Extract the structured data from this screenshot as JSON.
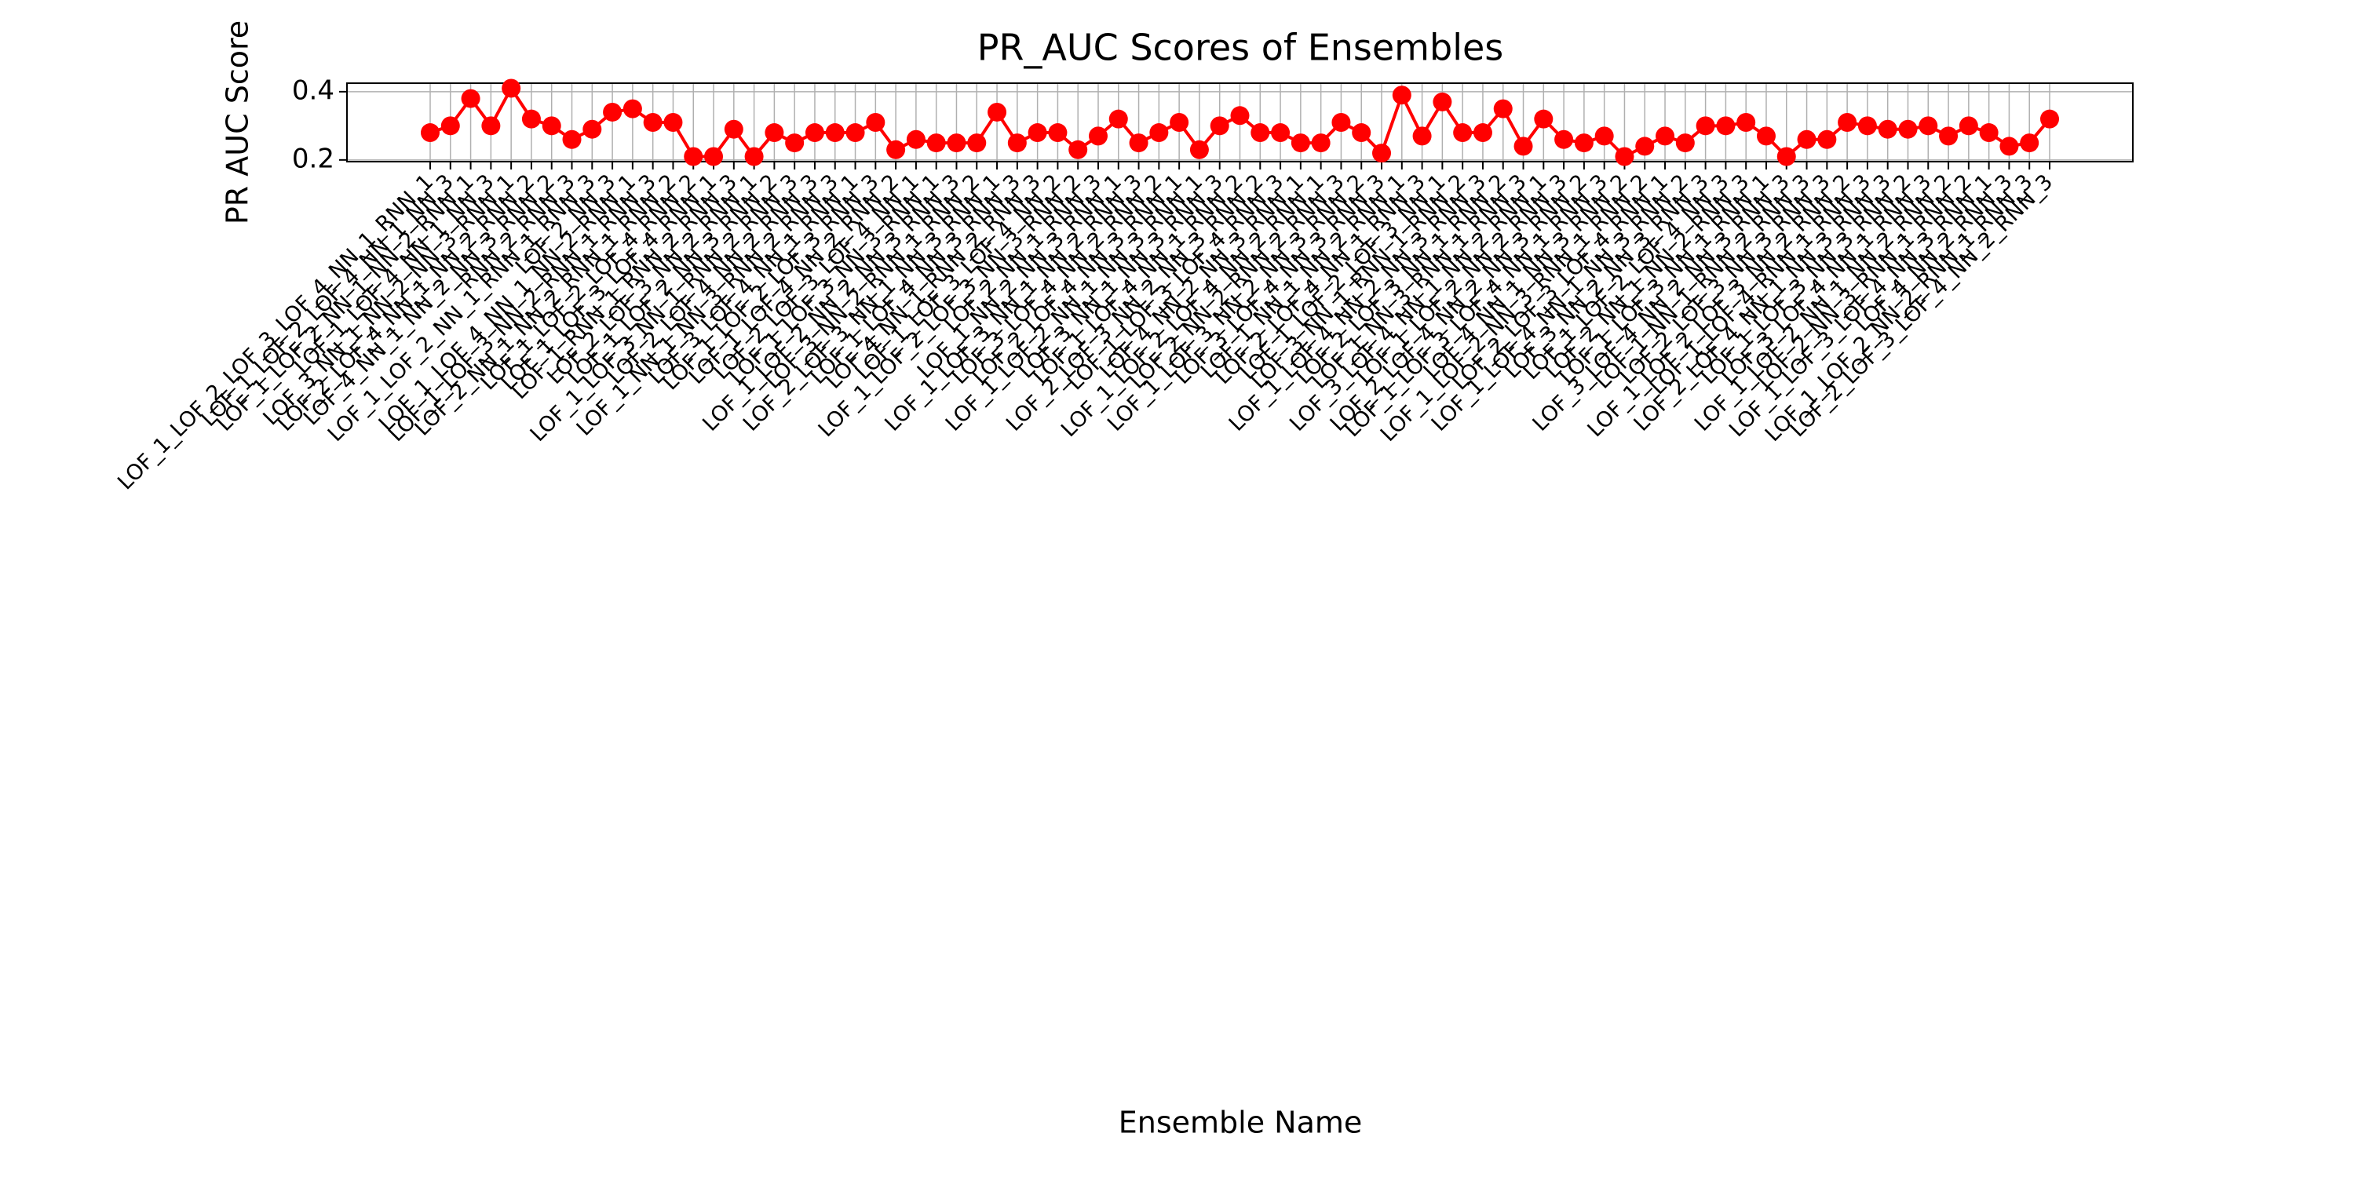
{
  "chart_data": {
    "type": "line",
    "title": "PR_AUC Scores of Ensembles",
    "x_label": "Ensemble Name",
    "y_label": "PR AUC Score",
    "categories": [
      "LOF_1_LOF_2_LOF_3_LOF_4_NN_1_RNN_1",
      "LOF_1_LOF_2_LOF_4_NN_1_NN_3",
      "LOF_1_LOF_2_NN_1_NN_2_RNN_1",
      "LOF_1_LOF_4_NN_1_NN_3",
      "LOF_3_NN_1_NN_2_NN_3_RNN_1",
      "LOF_2_LOF_4_NN_1_NN_2_RNN_2",
      "LOF_4_NN_1_NN_2_NN_3_RNN_2",
      "RNN_2_RNN_3",
      "LOF_1_LOF_2_NN_1_RNN_1_RNN_3",
      "LOF_2_NN_3",
      "LOF_1_LOF_4_NN_1_NN_2_RNN_1",
      "LOF_1_LOF_3_NN_2_RNN_1_RNN_3",
      "LOF_2_NN_1_NN_2_RNN_1_RNN_2",
      "LOF_1_LOF_2_LOF_4_RNN_2",
      "LOF_1_LOF_3_LOF_4_RNN_1",
      "LOF_1_RNN_1_RNN_2_RNN_3",
      "LOF_2_LOF_3_NN_2_RNN_1",
      "LOF_1_LOF_2_NN_3_RNN_2",
      "LOF_1_LOF_3_NN_1_RNN_2_RNN_3",
      "LOF_2_LOF_4_NN_2_RNN_3",
      "LOF_1_NN_1_NN_3_RNN_2_RNN_3",
      "LOF_3_LOF_4_NN_1_RNN_1",
      "LOF_1_LOF_2_LOF_3_RNN_3",
      "LOF_1_LOF_4_NN_2_RNN_2",
      "LOF_2_LOF_3_LOF_4_NN_1",
      "LOF_1_LOF_3_NN_3_RNN_1",
      "LOF_1_LOF_2_NN_2_NN_3_RNN_3",
      "LOF_3_NN_2_RNN_1_RNN_2",
      "LOF_2_LOF_3_NN_1_NN_3_RNN_1",
      "LOF_1_LOF_4_NN_3_RNN_3",
      "LOF_4_NN_1_RNN_2_RNN_3",
      "LOF_1_LOF_3_LOF_4_NN_2",
      "LOF_1_LOF_2_LOF_3_NN_3_RNN_2",
      "LOF_2_NN_1_RNN_3",
      "LOF_1_NN_2_NN_3_RNN_1",
      "LOF_1_LOF_3_NN_1_NN_2_RNN_3",
      "LOF_3_LOF_4_NN_2_RNN_2",
      "LOF_2_LOF_4_NN_3_RNN_1",
      "LOF_1_LOF_2_NN_1_NN_3_RNN_1",
      "LOF_3_NN_1_NN_3_RNN_3",
      "LOF_1_LOF_4_NN_1_RNN_2",
      "LOF_2_LOF_3_NN_2_NN_3_RNN_2",
      "LOF_1_LOF_3_LOF_4_RNN_3",
      "LOF_4_NN_2_NN_3_RNN_1",
      "LOF_1_LOF_2_LOF_4_NN_2_RNN_1",
      "LOF_2_NN_2_RNN_2_RNN_3",
      "LOF_1_LOF_3_NN_2_NN_3_RNN_2",
      "LOF_3_LOF_4_NN_3_RNN_3",
      "LOF_1_NN_1_NN_2_RNN_1",
      "LOF_2_LOF_4_NN_1_RNN_3",
      "LOF_1_LOF_2_LOF_3_NN_1",
      "LOF_3_NN_1_RNN_1_RNN_2",
      "LOF_1_LOF_4_NN_2_NN_3_RNN_3",
      "LOF_2_LOF_3_NN_1_RNN_2",
      "LOF_1_NN_3_RNN_1_RNN_3",
      "LOF_3_LOF_4_NN_1_NN_2_RNN_1",
      "LOF_1_LOF_2_NN_2_RNN_3",
      "LOF_2_LOF_4_NN_2_NN_3_RNN_2",
      "LOF_1_LOF_3_LOF_4_NN_1_RNN_3",
      "LOF_4_NN_1_NN_3_RNN_2",
      "LOF_1_LOF_2_NN_3_RNN_1_RNN_2",
      "LOF_2_LOF_3_LOF_4_RNN_1",
      "LOF_1_LOF_4_NN_1_NN_3_RNN_2",
      "LOF_3_NN_2_NN_3_RNN_3",
      "LOF_1_LOF_2_LOF_4_NN_3",
      "LOF_2_NN_1_NN_2_RNN_3",
      "LOF_1_LOF_3_NN_1_RNN_1",
      "LOF_3_LOF_4_NN_2_NN_3_RNN_3",
      "LOF_1_NN_1_RNN_2_RNN_3",
      "LOF_2_LOF_3_NN_3_RNN_3",
      "LOF_1_LOF_2_LOF_3_NN_2_RNN_2",
      "LOF_1_LOF_4_RNN_1_RNN_3",
      "LOF_2_LOF_4_NN_1_NN_3_RNN_3",
      "LOF_1_LOF_3_NN_3_RNN_2",
      "LOF_3_LOF_4_NN_1_RNN_3",
      "LOF_1_LOF_2_NN_1_NN_2_RNN_2",
      "LOF_2_NN_3_RNN_1_RNN_2",
      "LOF_1_LOF_3_LOF_4_NN_3_RNN_1",
      "LOF_4_NN_2_RNN_3",
      "LOF_1_LOF_2_NN_2_RNN_1_RNN_3",
      "LOF_2_LOF_3_LOF_4_NN_2_RNN_3"
    ],
    "values": [
      0.28,
      0.3,
      0.38,
      0.3,
      0.41,
      0.32,
      0.3,
      0.26,
      0.29,
      0.34,
      0.35,
      0.31,
      0.31,
      0.21,
      0.21,
      0.29,
      0.21,
      0.28,
      0.25,
      0.28,
      0.28,
      0.28,
      0.31,
      0.23,
      0.26,
      0.25,
      0.25,
      0.25,
      0.34,
      0.25,
      0.28,
      0.28,
      0.23,
      0.27,
      0.32,
      0.25,
      0.28,
      0.31,
      0.23,
      0.3,
      0.33,
      0.28,
      0.28,
      0.25,
      0.25,
      0.31,
      0.28,
      0.22,
      0.39,
      0.27,
      0.37,
      0.28,
      0.28,
      0.35,
      0.24,
      0.32,
      0.26,
      0.25,
      0.27,
      0.21,
      0.24,
      0.27,
      0.25,
      0.3,
      0.3,
      0.31,
      0.27,
      0.21,
      0.26,
      0.26,
      0.31,
      0.3,
      0.29,
      0.29,
      0.3,
      0.27,
      0.3,
      0.28,
      0.24,
      0.25,
      0.32
    ],
    "color": "#ff0000",
    "ylim": [
      0.195,
      0.425
    ],
    "yticks": [
      0.2,
      0.4
    ],
    "grid": true
  }
}
